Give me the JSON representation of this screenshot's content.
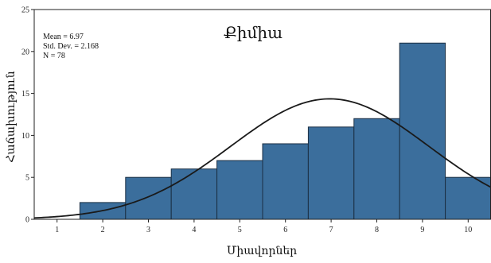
{
  "chart_data": {
    "type": "bar",
    "title": "Քիմիա",
    "xlabel": "Միավորներ",
    "ylabel": "Հաճախություն",
    "categories": [
      "1",
      "2",
      "3",
      "4",
      "5",
      "6",
      "7",
      "8",
      "9",
      "10"
    ],
    "values": [
      0,
      2,
      5,
      6,
      7,
      9,
      11,
      12,
      21,
      5
    ],
    "xlim": [
      0.5,
      10.5
    ],
    "ylim": [
      0,
      25
    ],
    "yticks": [
      "0",
      "5",
      "10",
      "15",
      "20",
      "25"
    ],
    "grid": false,
    "stats": {
      "mean": "Mean = 6.97",
      "std": "Std. Dev. = 2.168",
      "n": "N = 78"
    },
    "normal_curve": {
      "mean": 6.97,
      "std": 2.168,
      "n": 78,
      "bin_width": 1
    },
    "colors": {
      "bar": "#3b6e9c",
      "curve": "#1a1a1a"
    }
  }
}
